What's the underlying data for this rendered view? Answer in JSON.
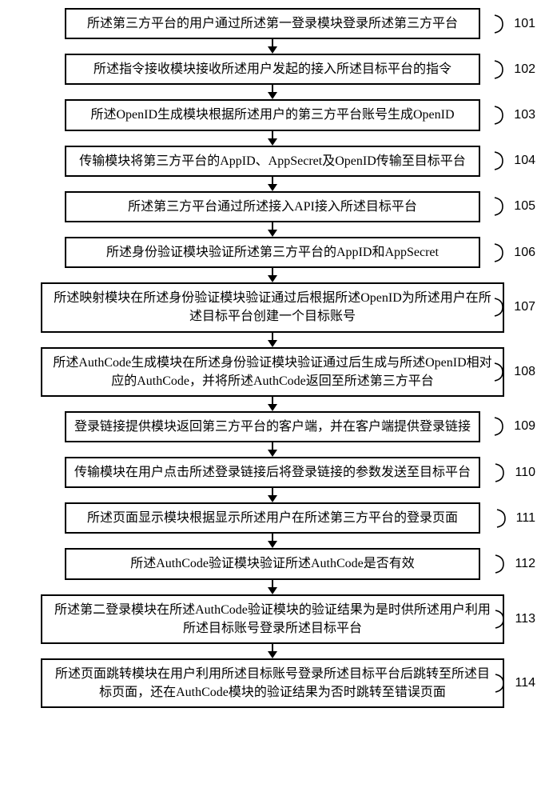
{
  "type": "flowchart",
  "layout": "vertical",
  "background_color": "#ffffff",
  "box_border_color": "#000000",
  "box_border_width": 2,
  "font_family": "SimSun, serif",
  "font_size": 16,
  "text_color": "#000000",
  "arrow_color": "#000000",
  "steps": [
    {
      "num": "101",
      "text": "所述第三方平台的用户通过所述第一登录模块登录所述第三方平台"
    },
    {
      "num": "102",
      "text": "所述指令接收模块接收所述用户发起的接入所述目标平台的指令"
    },
    {
      "num": "103",
      "text": "所述OpenID生成模块根据所述用户的第三方平台账号生成OpenID"
    },
    {
      "num": "104",
      "text": "传输模块将第三方平台的AppID、AppSecret及OpenID传输至目标平台"
    },
    {
      "num": "105",
      "text": "所述第三方平台通过所述接入API接入所述目标平台"
    },
    {
      "num": "106",
      "text": "所述身份验证模块验证所述第三方平台的AppID和AppSecret"
    },
    {
      "num": "107",
      "text": "所述映射模块在所述身份验证模块验证通过后根据所述OpenID为所述用户在所述目标平台创建一个目标账号"
    },
    {
      "num": "108",
      "text": "所述AuthCode生成模块在所述身份验证模块验证通过后生成与所述OpenID相对应的AuthCode，并将所述AuthCode返回至所述第三方平台"
    },
    {
      "num": "109",
      "text": "登录链接提供模块返回第三方平台的客户端，并在客户端提供登录链接"
    },
    {
      "num": "110",
      "text": "传输模块在用户点击所述登录链接后将登录链接的参数发送至目标平台"
    },
    {
      "num": "111",
      "text": "所述页面显示模块根据显示所述用户在所述第三方平台的登录页面"
    },
    {
      "num": "112",
      "text": "所述AuthCode验证模块验证所述AuthCode是否有效"
    },
    {
      "num": "113",
      "text": "所述第二登录模块在所述AuthCode验证模块的验证结果为是时供所述用户利用所述目标账号登录所述目标平台"
    },
    {
      "num": "114",
      "text": "所述页面跳转模块在用户利用所述目标账号登录所述目标平台后跳转至所述目标页面，还在AuthCode模块的验证结果为否时跳转至错误页面"
    }
  ]
}
